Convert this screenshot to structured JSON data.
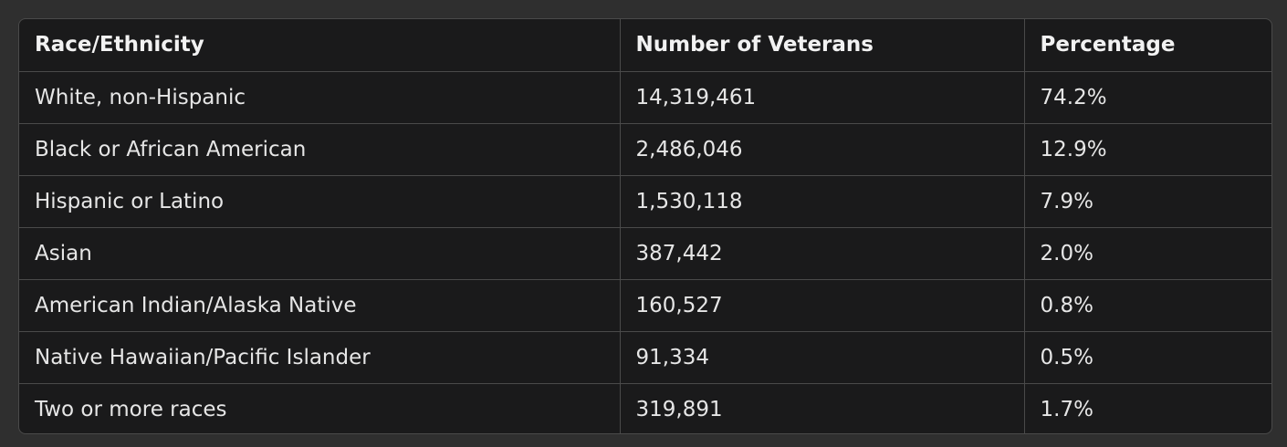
{
  "table": {
    "headers": [
      "Race/Ethnicity",
      "Number of Veterans",
      "Percentage"
    ],
    "rows": [
      [
        "White, non-Hispanic",
        "14,319,461",
        "74.2%"
      ],
      [
        "Black or African American",
        "2,486,046",
        "12.9%"
      ],
      [
        "Hispanic or Latino",
        "1,530,118",
        "7.9%"
      ],
      [
        "Asian",
        "387,442",
        "2.0%"
      ],
      [
        "American Indian/Alaska Native",
        "160,527",
        "0.8%"
      ],
      [
        "Native Hawaiian/Pacific Islander",
        "91,334",
        "0.5%"
      ],
      [
        "Two or more races",
        "319,891",
        "1.7%"
      ]
    ]
  },
  "colors": {
    "page_background": "#2f2f2f",
    "table_background": "#1a1a1b",
    "border": "#4a4a4a",
    "text": "#e6e6e6"
  }
}
